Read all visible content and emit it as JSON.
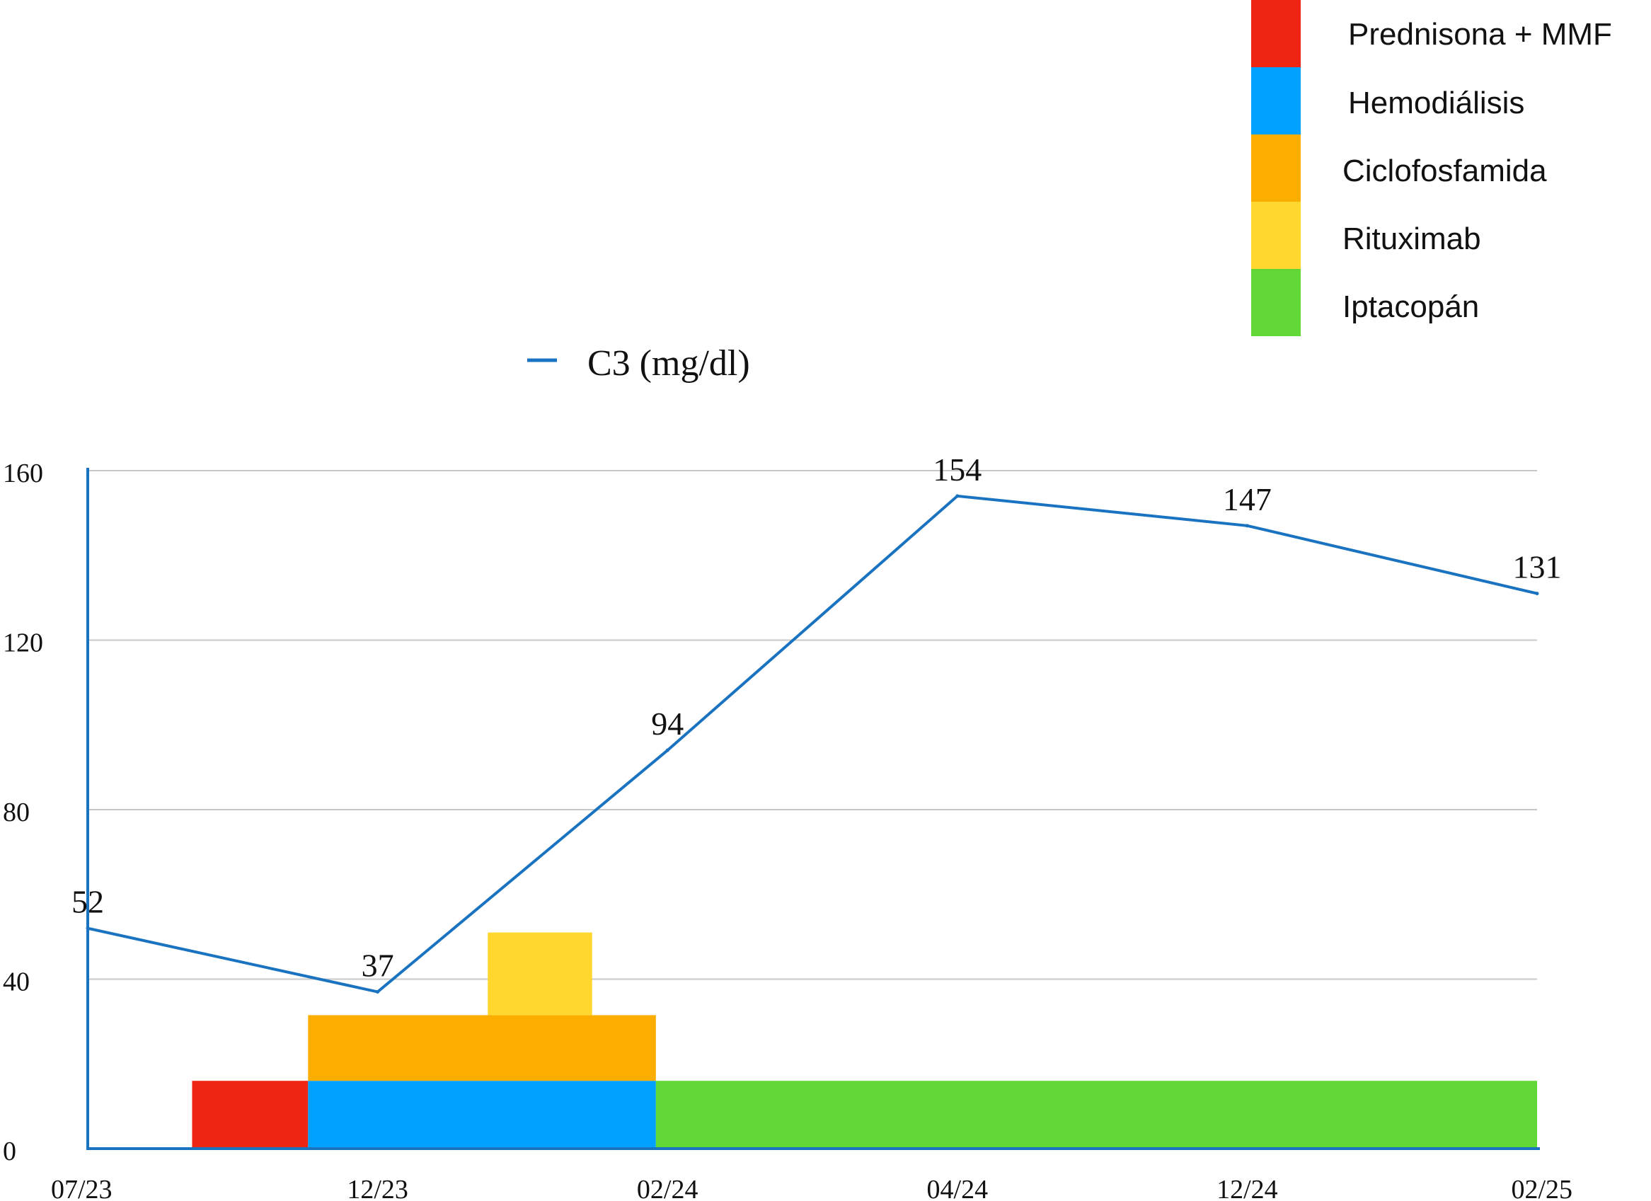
{
  "chart_data": {
    "type": "line",
    "categories": [
      "07/23",
      "12/23",
      "02/24",
      "04/24",
      "12/24",
      "02/25"
    ],
    "series": [
      {
        "name": "C3 (mg/dl)",
        "values": [
          52,
          37,
          94,
          154,
          147,
          131
        ],
        "labels": [
          "52",
          "37",
          "94",
          "154",
          "147",
          "131"
        ],
        "color": "#1a73c1"
      }
    ],
    "ylim": [
      0,
      160
    ],
    "yticks": [
      0,
      40,
      80,
      120,
      160
    ],
    "ytick_labels": [
      "0",
      "40",
      "80",
      "120",
      "160"
    ],
    "grid": true,
    "treatments": [
      {
        "name": "Prednisona + MMF",
        "color": "#ee2512",
        "start": 0.36,
        "end": 0.76,
        "bottom": 0,
        "top": 16
      },
      {
        "name": "Hemodiálisis",
        "color": "#00a1ff",
        "start": 0.76,
        "end": 1.96,
        "bottom": 0,
        "top": 16
      },
      {
        "name": "Ciclofosfamida",
        "color": "#fbae00",
        "start": 0.76,
        "end": 1.96,
        "bottom": 16,
        "top": 31.5
      },
      {
        "name": "Rituximab",
        "color": "#ffd72e",
        "start": 1.38,
        "end": 1.74,
        "bottom": 31.5,
        "top": 51
      },
      {
        "name": "Iptacopán",
        "color": "#61d836",
        "start": 1.96,
        "end": 5.0,
        "bottom": 0,
        "top": 16
      }
    ],
    "legend": {
      "line_label": "C3 (mg/dl)",
      "treatment_labels": [
        "Prednisona + MMF",
        "Hemodiálisis",
        "Ciclofosfamida",
        "Rituximab",
        "Iptacopán"
      ],
      "line_legend_placement": "top-center",
      "treatment_legend_placement": "top-right"
    },
    "colors": {
      "line": "#1a73c1",
      "axis": "#1a73c1",
      "grid": "#c8c8c8"
    }
  }
}
